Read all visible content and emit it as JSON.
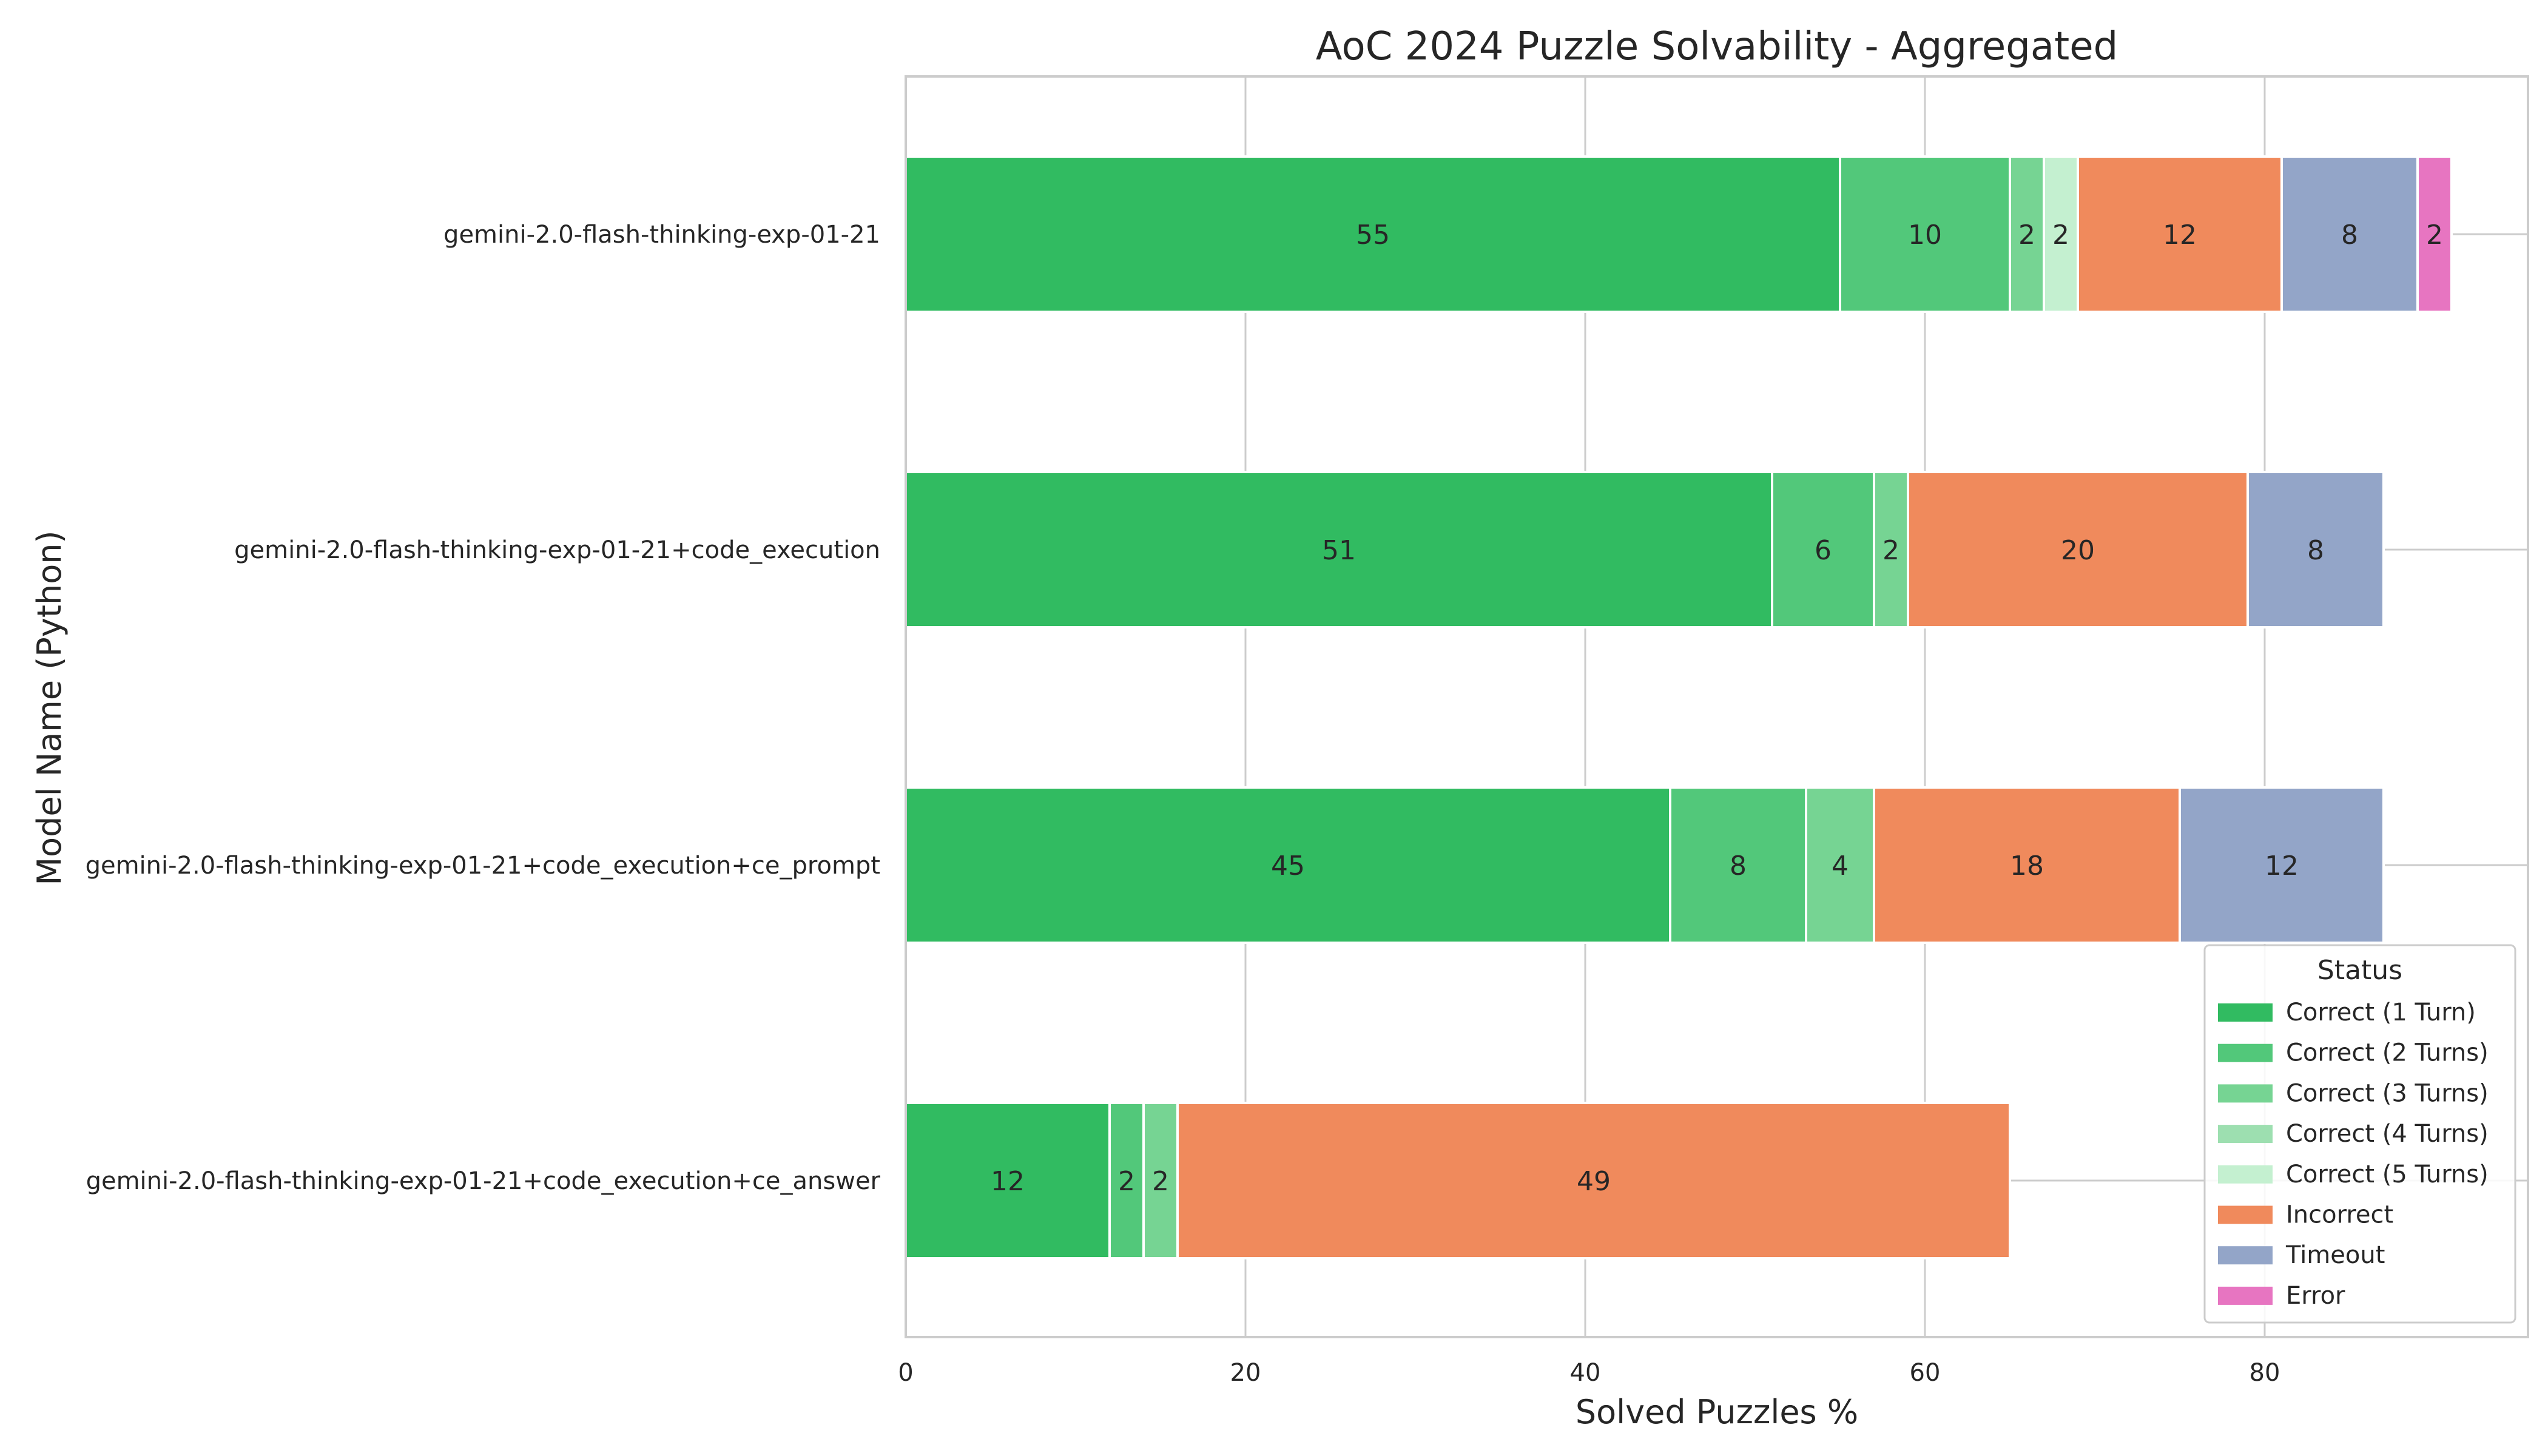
{
  "chart_data": {
    "type": "bar",
    "orientation": "horizontal",
    "stacked": true,
    "title": "AoC 2024 Puzzle Solvability - Aggregated",
    "xlabel": "Solved Puzzles %",
    "ylabel": "Model Name (Python)",
    "xlim": [
      0,
      95.5
    ],
    "xticks": [
      0,
      20,
      40,
      60,
      80
    ],
    "grid": true,
    "legend": {
      "title": "Status",
      "position": "lower-right"
    },
    "categories": [
      "gemini-2.0-flash-thinking-exp-01-21",
      "gemini-2.0-flash-thinking-exp-01-21+code_execution",
      "gemini-2.0-flash-thinking-exp-01-21+code_execution+ce_prompt",
      "gemini-2.0-flash-thinking-exp-01-21+code_execution+ce_answer"
    ],
    "series": [
      {
        "name": "Correct (1 Turn)",
        "color": "#31bb61",
        "values": [
          55,
          51,
          45,
          12
        ]
      },
      {
        "name": "Correct (2 Turns)",
        "color": "#52c87a",
        "values": [
          10,
          6,
          8,
          2
        ]
      },
      {
        "name": "Correct (3 Turns)",
        "color": "#76d493",
        "values": [
          2,
          2,
          4,
          2
        ]
      },
      {
        "name": "Correct (4 Turns)",
        "color": "#9ddfb0",
        "values": [
          0,
          0,
          0,
          0
        ]
      },
      {
        "name": "Correct (5 Turns)",
        "color": "#c4f0d0",
        "values": [
          2,
          0,
          0,
          0
        ]
      },
      {
        "name": "Incorrect",
        "color": "#f08a5c",
        "values": [
          12,
          20,
          18,
          49
        ]
      },
      {
        "name": "Timeout",
        "color": "#93a5c8",
        "values": [
          8,
          8,
          12,
          0
        ]
      },
      {
        "name": "Error",
        "color": "#e775c1",
        "values": [
          2,
          0,
          0,
          0
        ]
      }
    ]
  }
}
